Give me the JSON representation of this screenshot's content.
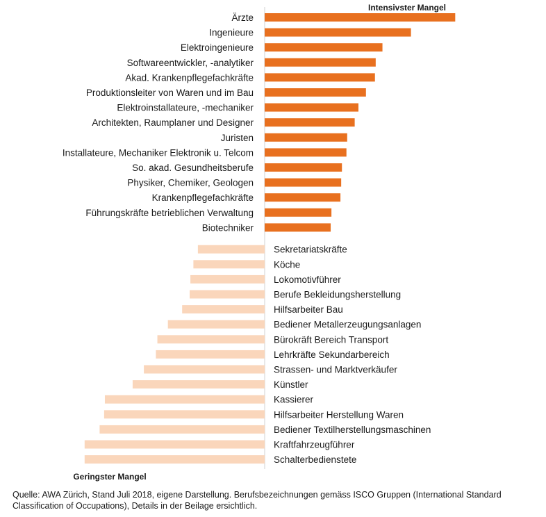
{
  "chart_data": {
    "type": "bar",
    "orientation": "horizontal",
    "title": "",
    "axis_zero_label": "",
    "legend": {
      "top": "Intensivster Mangel",
      "bottom": "Geringster Mangel"
    },
    "colors": {
      "positive": "#E8701F",
      "negative": "#FAD6BB"
    },
    "xlim": [
      -2.6,
      2.6
    ],
    "series": [
      {
        "name": "Intensivster Mangel",
        "categories": [
          "Ärzte",
          "Ingenieure",
          "Elektroingenieure",
          "Softwareentwickler, -analytiker",
          "Akad. Krankenpflegefachkräfte",
          "Produktionsleiter von Waren und im Bau",
          "Elektroinstallateure, -mechaniker",
          "Architekten, Raumplaner und Designer",
          "Juristen",
          "Installateure, Mechaniker Elektronik u. Telcom",
          "So. akad. Gesundheitsberufe",
          "Physiker, Chemiker, Geologen",
          "Krankenpflegefachkräfte",
          "Führungskräfte betrieblichen Verwaltung",
          "Biotechniker"
        ],
        "values": [
          2.54,
          1.95,
          1.57,
          1.48,
          1.47,
          1.35,
          1.25,
          1.2,
          1.1,
          1.09,
          1.03,
          1.02,
          1.01,
          0.89,
          0.88
        ]
      },
      {
        "name": "Geringster Mangel",
        "categories": [
          "Sekretariatskräfte",
          "Köche",
          "Lokomotivführer",
          "Berufe Bekleidungsherstellung",
          "Hilfsarbeiter Bau",
          "Bediener Metallerzeugungsanlagen",
          "Bürokräft Bereich Transport",
          "Lehrkräfte Sekundarbereich",
          "Strassen- und Marktverkäufer",
          "Künstler",
          "Kassierer",
          "Hilfsarbeiter Herstellung Waren",
          "Bediener Textilherstellungsmaschinen",
          "Kraftfahrzeugführer",
          "Schalterbedienstete"
        ],
        "values": [
          -0.89,
          -0.95,
          -0.99,
          -1.0,
          -1.1,
          -1.29,
          -1.43,
          -1.45,
          -1.61,
          -1.76,
          -2.13,
          -2.14,
          -2.2,
          -2.4,
          -2.4
        ]
      }
    ]
  },
  "footer": {
    "source": "Quelle: AWA Zürich, Stand Juli 2018, eigene Darstellung. Berufsbezeichnungen gemäss ISCO Gruppen (International Standard Classification of Occupations), Details in der Beilage ersichtlich."
  }
}
